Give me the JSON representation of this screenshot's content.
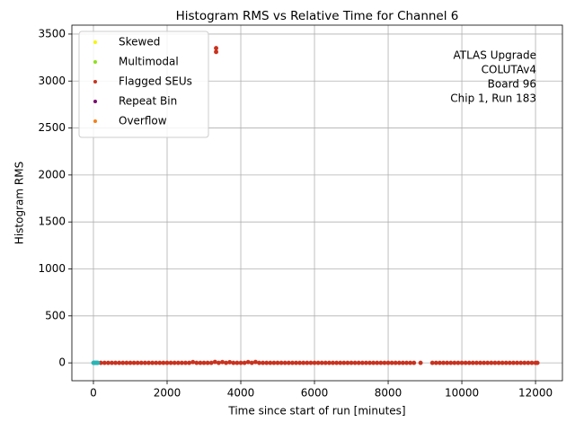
{
  "chart_data": {
    "type": "scatter",
    "title": "Histogram RMS vs Relative Time for Channel 6",
    "x_label": "Time since start of run [minutes]",
    "y_label": "Histogram RMS",
    "annotation": [
      "ATLAS Upgrade",
      "COLUTAv4",
      "Board 96",
      "Chip 1, Run 183"
    ],
    "xlim": [
      -585,
      12730
    ],
    "ylim": [
      -190,
      3595
    ],
    "xticks": [
      0,
      2000,
      4000,
      6000,
      8000,
      10000,
      12000
    ],
    "yticks": [
      0,
      500,
      1000,
      1500,
      2000,
      2500,
      3000,
      3500
    ],
    "grid": true,
    "legend": "upper left",
    "series": [
      {
        "name": "Skewed",
        "color": "#f5f50a",
        "x": [],
        "values": []
      },
      {
        "name": "Multimodal",
        "color": "#8fe01a",
        "x": [],
        "values": []
      },
      {
        "name": "Flagged SEUs",
        "color": "#c8321e",
        "x": [
          200,
          300,
          400,
          500,
          600,
          700,
          800,
          900,
          1000,
          1100,
          1200,
          1300,
          1400,
          1500,
          1600,
          1700,
          1800,
          1900,
          2000,
          2100,
          2200,
          2300,
          2400,
          2500,
          2600,
          2700,
          2800,
          2900,
          3000,
          3100,
          3200,
          3300,
          3400,
          3500,
          3600,
          3700,
          3800,
          3900,
          4000,
          4100,
          4200,
          4300,
          4400,
          4500,
          4600,
          4700,
          4800,
          4900,
          5000,
          5100,
          5200,
          5300,
          5400,
          5500,
          5600,
          5700,
          5800,
          5900,
          6000,
          6100,
          6200,
          6300,
          6400,
          6500,
          6600,
          6700,
          6800,
          6900,
          7000,
          7100,
          7200,
          7300,
          7400,
          7500,
          7600,
          7700,
          7800,
          7900,
          8000,
          8100,
          8200,
          8300,
          8400,
          8500,
          8600,
          8700,
          8880,
          9200,
          9300,
          9400,
          9500,
          9600,
          9700,
          9800,
          9900,
          10000,
          10100,
          10200,
          10300,
          10400,
          10500,
          10600,
          10700,
          10800,
          10900,
          11000,
          11100,
          11200,
          11300,
          11400,
          11500,
          11600,
          11700,
          11800,
          11900,
          12000,
          12050,
          3330,
          3330
        ],
        "values": [
          0,
          0,
          0,
          0,
          0,
          0,
          0,
          0,
          0,
          0,
          0,
          0,
          0,
          0,
          0,
          0,
          0,
          0,
          0,
          0,
          0,
          0,
          0,
          0,
          0,
          8,
          0,
          0,
          0,
          0,
          0,
          10,
          0,
          8,
          0,
          7,
          0,
          0,
          0,
          0,
          8,
          0,
          9,
          0,
          0,
          0,
          0,
          0,
          0,
          0,
          0,
          0,
          0,
          0,
          0,
          0,
          0,
          0,
          0,
          0,
          0,
          0,
          0,
          0,
          0,
          0,
          0,
          0,
          0,
          0,
          0,
          0,
          0,
          0,
          0,
          0,
          0,
          0,
          0,
          0,
          0,
          0,
          0,
          0,
          0,
          0,
          0,
          0,
          0,
          0,
          0,
          0,
          0,
          0,
          0,
          0,
          0,
          0,
          0,
          0,
          0,
          0,
          0,
          0,
          0,
          0,
          0,
          0,
          0,
          0,
          0,
          0,
          0,
          0,
          0,
          0,
          0,
          3350,
          3310
        ]
      },
      {
        "name": "Repeat Bin",
        "color": "#7a0a6e",
        "x": [],
        "values": []
      },
      {
        "name": "Overflow",
        "color": "#f57f17",
        "x": [],
        "values": []
      },
      {
        "color": "#2ab5b5",
        "x": [
          0,
          20,
          40,
          60,
          80,
          100,
          120
        ],
        "values": [
          0,
          0,
          0,
          0,
          0,
          0,
          0
        ]
      }
    ]
  }
}
